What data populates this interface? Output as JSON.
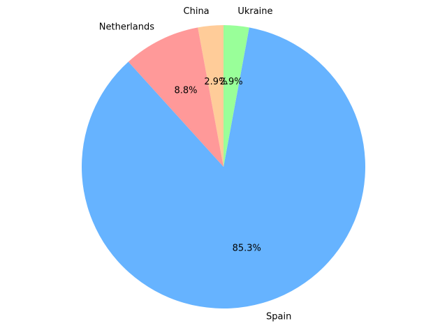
{
  "chart_data": {
    "type": "pie",
    "title": "",
    "start_angle_deg": 90,
    "direction": "counterclockwise",
    "slices": [
      {
        "label": "China",
        "value": 2.9,
        "pct_label": "2.9%",
        "color": "#ffcc99"
      },
      {
        "label": "Netherlands",
        "value": 8.8,
        "pct_label": "8.8%",
        "color": "#ff9999"
      },
      {
        "label": "Spain",
        "value": 85.3,
        "pct_label": "85.3%",
        "color": "#66b3ff"
      },
      {
        "label": "Ukraine",
        "value": 2.9,
        "pct_label": "2.9%",
        "color": "#99ff99"
      }
    ]
  }
}
